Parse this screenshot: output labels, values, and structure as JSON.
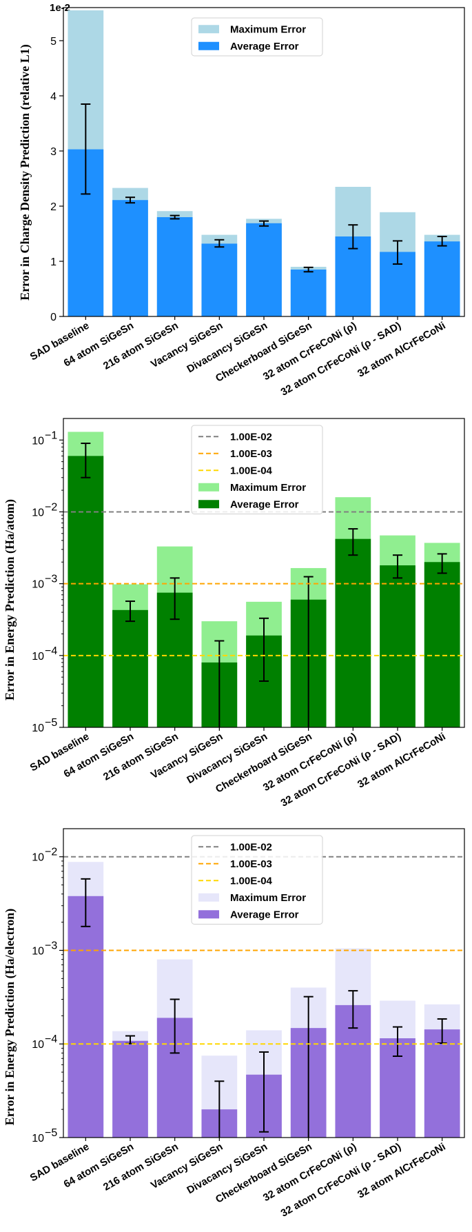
{
  "chart_data": [
    {
      "type": "bar",
      "scale": "linear",
      "ylabel": "Error in Charge Density Prediction (relative L1)",
      "offset_text": "1e-2",
      "ylim": [
        0,
        5.6
      ],
      "yticks": [
        0,
        1,
        2,
        3,
        4,
        5
      ],
      "ytick_labels": [
        "0",
        "1",
        "2",
        "3",
        "4",
        "5"
      ],
      "categories": [
        "SAD baseline",
        "64 atom SiGeSn",
        "216 atom SiGeSn",
        "Vacancy SiGeSn",
        "Divacancy SiGeSn",
        "Checkerboard SiGeSn",
        "32 atom CrFeCoNi (ρ)",
        "32 atom CrFeCoNi (ρ - SAD)",
        "32 atom AlCrFeCoNi"
      ],
      "series": [
        {
          "name": "Maximum Error",
          "color": "#add8e6",
          "values": [
            5.55,
            2.33,
            1.91,
            1.48,
            1.77,
            0.9,
            2.35,
            1.89,
            1.48
          ]
        },
        {
          "name": "Average Error",
          "color": "#1e90ff",
          "values": [
            3.03,
            2.11,
            1.8,
            1.32,
            1.69,
            0.85,
            1.45,
            1.17,
            1.36
          ],
          "err_low": [
            2.22,
            2.06,
            1.77,
            1.26,
            1.64,
            0.81,
            1.23,
            0.95,
            1.28
          ],
          "err_high": [
            3.85,
            2.16,
            1.83,
            1.39,
            1.73,
            0.89,
            1.66,
            1.37,
            1.45
          ]
        }
      ],
      "hlines": [],
      "legend_position": "top-center"
    },
    {
      "type": "bar",
      "scale": "log",
      "ylabel": "Error in Energy Prediction (Ha/atom)",
      "ylim_exp": [
        -5,
        -0.7
      ],
      "ytick_exponents": [
        -5,
        -4,
        -3,
        -2,
        -1
      ],
      "categories": [
        "SAD baseline",
        "64 atom SiGeSn",
        "216 atom SiGeSn",
        "Vacancy SiGeSn",
        "Divacancy SiGeSn",
        "Checkerboard SiGeSn",
        "32 atom CrFeCoNi (ρ)",
        "32 atom CrFeCoNi (ρ - SAD)",
        "32 atom AlCrFeCoNi"
      ],
      "series": [
        {
          "name": "Maximum Error",
          "color": "#90ee90",
          "values": [
            0.13,
            0.00098,
            0.0033,
            0.0003,
            0.00056,
            0.00165,
            0.016,
            0.0047,
            0.0037
          ]
        },
        {
          "name": "Average Error",
          "color": "#008000",
          "values": [
            0.06,
            0.00043,
            0.00075,
            8e-05,
            0.00019,
            0.0006,
            0.0042,
            0.0018,
            0.002
          ],
          "err_low": [
            0.03,
            0.0003,
            0.00032,
            1e-06,
            4.4e-05,
            1e-06,
            0.0025,
            0.0012,
            0.0014
          ],
          "err_high": [
            0.09,
            0.00057,
            0.0012,
            0.00016,
            0.00033,
            0.00125,
            0.0058,
            0.0025,
            0.0026
          ]
        }
      ],
      "hlines": [
        {
          "label": "1.00E-02",
          "value": 0.01,
          "color": "#808080"
        },
        {
          "label": "1.00E-03",
          "value": 0.001,
          "color": "#ffa500"
        },
        {
          "label": "1.00E-04",
          "value": 0.0001,
          "color": "#ffd700"
        }
      ],
      "legend_position": "top-center"
    },
    {
      "type": "bar",
      "scale": "log",
      "ylabel": "Error in Energy Prediction (Ha/electron)",
      "ylim_exp": [
        -5,
        -1.7
      ],
      "ytick_exponents": [
        -5,
        -4,
        -3,
        -2
      ],
      "categories": [
        "SAD baseline",
        "64 atom SiGeSn",
        "216 atom SiGeSn",
        "Vacancy SiGeSn",
        "Divacancy SiGeSn",
        "Checkerboard SiGeSn",
        "32 atom CrFeCoNi (ρ)",
        "32 atom CrFeCoNi (ρ - SAD)",
        "32 atom AlCrFeCoNi"
      ],
      "series": [
        {
          "name": "Maximum Error",
          "color": "#e6e6fa",
          "values": [
            0.0088,
            0.000137,
            0.0008,
            7.5e-05,
            0.00014,
            0.0004,
            0.00105,
            0.00029,
            0.000265
          ]
        },
        {
          "name": "Average Error",
          "color": "#9370db",
          "values": [
            0.0038,
            0.000108,
            0.00019,
            2e-05,
            4.7e-05,
            0.000148,
            0.00026,
            0.000115,
            0.000143
          ],
          "err_low": [
            0.0018,
            0.000101,
            8e-05,
            1e-06,
            1.15e-05,
            1e-06,
            0.000148,
            7.4e-05,
            0.000102
          ],
          "err_high": [
            0.0058,
            0.000122,
            0.0003,
            4e-05,
            8.2e-05,
            0.00032,
            0.00037,
            0.000152,
            0.000185
          ]
        }
      ],
      "hlines": [
        {
          "label": "1.00E-02",
          "value": 0.01,
          "color": "#808080"
        },
        {
          "label": "1.00E-03",
          "value": 0.001,
          "color": "#ffa500"
        },
        {
          "label": "1.00E-04",
          "value": 0.0001,
          "color": "#ffd700"
        }
      ],
      "legend_position": "top-center"
    }
  ]
}
